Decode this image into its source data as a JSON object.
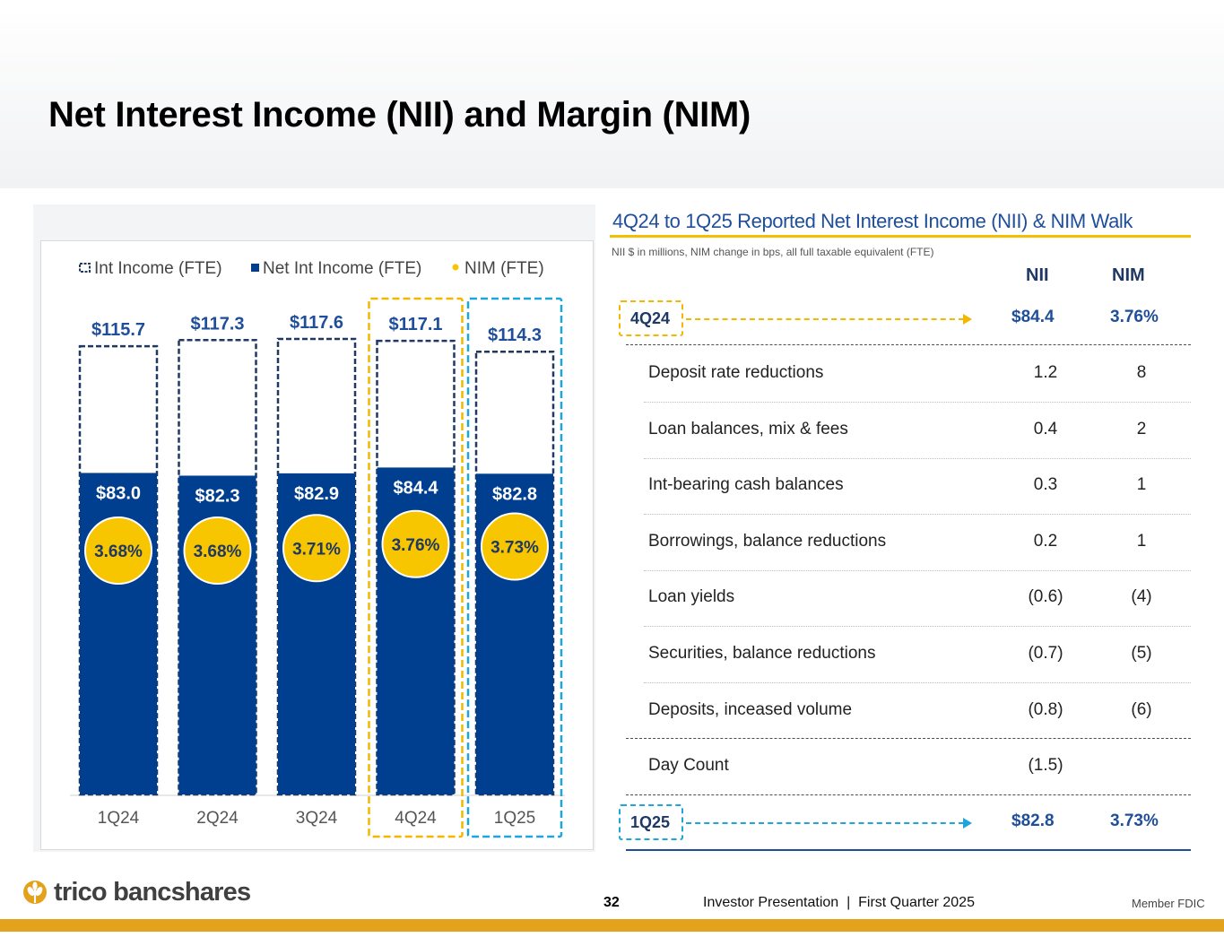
{
  "page_title": "Net Interest Income (NII) and Margin (NIM)",
  "chart_data": {
    "type": "bar",
    "categories": [
      "1Q24",
      "2Q24",
      "3Q24",
      "4Q24",
      "1Q25"
    ],
    "series": [
      {
        "name": "Int Income (FTE)",
        "values": [
          115.7,
          117.3,
          117.6,
          117.1,
          114.3
        ],
        "labels": [
          "$115.7",
          "$117.3",
          "$117.6",
          "$117.1",
          "$114.3"
        ]
      },
      {
        "name": "Net Int Income (FTE)",
        "values": [
          83.0,
          82.3,
          82.9,
          84.4,
          82.8
        ],
        "labels": [
          "$83.0",
          "$82.3",
          "$82.9",
          "$84.4",
          "$82.8"
        ]
      },
      {
        "name": "NIM (FTE)",
        "values": [
          3.68,
          3.68,
          3.71,
          3.76,
          3.73
        ],
        "labels": [
          "3.68%",
          "3.68%",
          "3.71%",
          "3.76%",
          "3.73%"
        ]
      }
    ],
    "legend": [
      "Int Income (FTE)",
      "Net Int Income (FTE)",
      "NIM (FTE)"
    ],
    "legend_position": "top",
    "highlighted_categories": [
      {
        "category": "4Q24",
        "color": "#f2b800"
      },
      {
        "category": "1Q25",
        "color": "#1ea6dc"
      }
    ],
    "colors": {
      "net_int_income": "#003f8f",
      "int_income_border": "#1f3864",
      "nim_circle": "#f7c600",
      "label": "#1f4e9a"
    }
  },
  "walk": {
    "title": "4Q24 to 1Q25 Reported Net Interest Income (NII) & NIM Walk",
    "subtitle": "NII $ in millions, NIM change in bps, all full taxable equivalent (FTE)",
    "col_nii": "NII",
    "col_nim": "NIM",
    "start": {
      "label": "4Q24",
      "nii": "$84.4",
      "nim": "3.76%",
      "color": "#f2b800"
    },
    "rows": [
      {
        "label": "Deposit rate reductions",
        "nii": "1.2",
        "nim": "8"
      },
      {
        "label": "Loan balances, mix & fees",
        "nii": "0.4",
        "nim": "2"
      },
      {
        "label": "Int-bearing cash balances",
        "nii": "0.3",
        "nim": "1"
      },
      {
        "label": "Borrowings, balance reductions",
        "nii": "0.2",
        "nim": "1"
      },
      {
        "label": "Loan yields",
        "nii": "(0.6)",
        "nim": "(4)"
      },
      {
        "label": "Securities, balance reductions",
        "nii": "(0.7)",
        "nim": "(5)"
      },
      {
        "label": "Deposits, inceased volume",
        "nii": "(0.8)",
        "nim": "(6)"
      },
      {
        "label": "Day Count",
        "nii": "(1.5)",
        "nim": ""
      }
    ],
    "end": {
      "label": "1Q25",
      "nii": "$82.8",
      "nim": "3.73%",
      "color": "#1ea6dc"
    }
  },
  "footer": {
    "logo_text": "trico bancshares",
    "page_number": "32",
    "presentation": "Investor Presentation  |  First Quarter 2025",
    "fdic": "Member FDIC"
  }
}
